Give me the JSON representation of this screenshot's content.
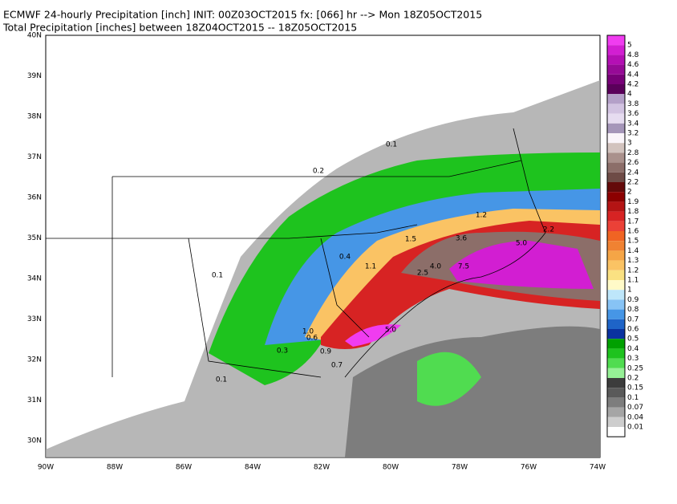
{
  "header": {
    "line1": "ECMWF 24-hourly Precipitation [inch] INIT: 00Z03OCT2015 fx: [066] hr --> Mon 18Z05OCT2015",
    "line2": "Total Precipitation [inches] between 18Z04OCT2015 -- 18Z05OCT2015"
  },
  "map": {
    "lat_labels": [
      "40N",
      "39N",
      "38N",
      "37N",
      "36N",
      "35N",
      "34N",
      "33N",
      "32N",
      "31N",
      "30N"
    ],
    "lon_labels": [
      "90W",
      "88W",
      "86W",
      "84W",
      "82W",
      "80W",
      "78W",
      "76W",
      "74W"
    ],
    "point_labels": [
      "5.0",
      "4.0",
      "7.5",
      "3.6",
      "2.5",
      "5.0",
      "1.0",
      "0.9",
      "0.6",
      "0.3",
      "0.1",
      "0.2",
      "0.1",
      "1.1",
      "1.5",
      "2.2",
      "0.1",
      "0.7",
      "0.4",
      "1.2"
    ]
  },
  "colorbar": [
    {
      "label": "5",
      "color": "#f03cf0"
    },
    {
      "label": "4.8",
      "color": "#d21ed2"
    },
    {
      "label": "4.6",
      "color": "#b40fb4"
    },
    {
      "label": "4.4",
      "color": "#960a96"
    },
    {
      "label": "4.2",
      "color": "#780078"
    },
    {
      "label": "4",
      "color": "#5a005a"
    },
    {
      "label": "3.8",
      "color": "#b4a0c8"
    },
    {
      "label": "3.6",
      "color": "#d2c3e1"
    },
    {
      "label": "3.4",
      "color": "#e6dcf0"
    },
    {
      "label": "3.2",
      "color": "#a596b9"
    },
    {
      "label": "3",
      "color": "#faf5fa"
    },
    {
      "label": "2.8",
      "color": "#d2c3be"
    },
    {
      "label": "2.6",
      "color": "#aa918c"
    },
    {
      "label": "2.4",
      "color": "#8c6e69"
    },
    {
      "label": "2.2",
      "color": "#6e4b46"
    },
    {
      "label": "2",
      "color": "#640a0a"
    },
    {
      "label": "1.9",
      "color": "#8c0000"
    },
    {
      "label": "1.8",
      "color": "#b41414"
    },
    {
      "label": "1.7",
      "color": "#d72323"
    },
    {
      "label": "1.6",
      "color": "#eb4137"
    },
    {
      "label": "1.5",
      "color": "#f06423"
    },
    {
      "label": "1.4",
      "color": "#f08232"
    },
    {
      "label": "1.3",
      "color": "#f5a546"
    },
    {
      "label": "1.2",
      "color": "#fac364"
    },
    {
      "label": "1.1",
      "color": "#fae182"
    },
    {
      "label": "1",
      "color": "#fffac8"
    },
    {
      "label": "0.9",
      "color": "#bee6fa"
    },
    {
      "label": "0.8",
      "color": "#87c3f5"
    },
    {
      "label": "0.7",
      "color": "#4696e6"
    },
    {
      "label": "0.6",
      "color": "#1e64c8"
    },
    {
      "label": "0.5",
      "color": "#0a32a0"
    },
    {
      "label": "0.4",
      "color": "#00a000"
    },
    {
      "label": "0.3",
      "color": "#1ec31e"
    },
    {
      "label": "0.25",
      "color": "#50dc50"
    },
    {
      "label": "0.2",
      "color": "#96f096"
    },
    {
      "label": "0.15",
      "color": "#3c3c3c"
    },
    {
      "label": "0.1",
      "color": "#5a5a5a"
    },
    {
      "label": "0.07",
      "color": "#7d7d7d"
    },
    {
      "label": "0.04",
      "color": "#a5a5a5"
    },
    {
      "label": "0.01",
      "color": "#cdcdcd"
    }
  ]
}
